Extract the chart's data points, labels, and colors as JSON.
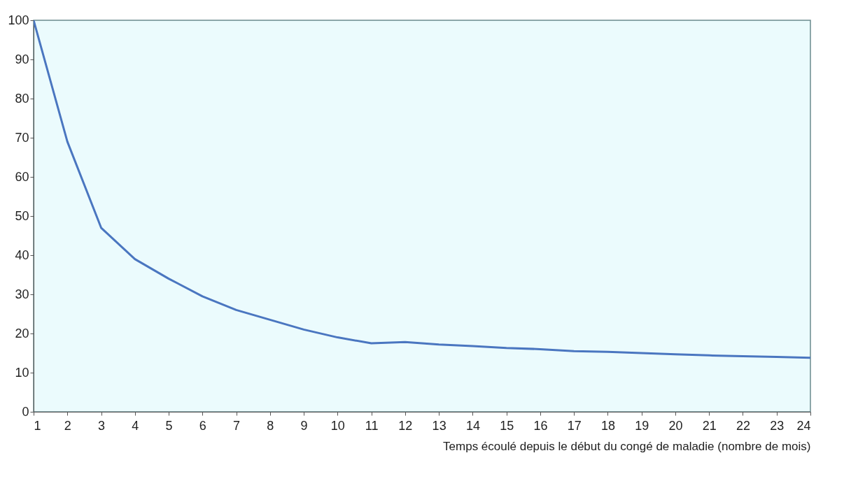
{
  "chart_data": {
    "type": "line",
    "xlabel": "Temps écoulé depuis le début du congé de maladie (nombre de mois)",
    "x": [
      1,
      2,
      3,
      4,
      5,
      6,
      7,
      8,
      9,
      10,
      11,
      12,
      13,
      14,
      15,
      16,
      17,
      18,
      19,
      20,
      21,
      22,
      23,
      24
    ],
    "series": [
      {
        "color": "#4a76c0",
        "values": [
          100,
          69,
          47,
          39,
          34,
          29.5,
          26,
          23.5,
          21,
          19,
          17.5,
          17.8,
          17.2,
          16.8,
          16.3,
          16,
          15.5,
          15.3,
          15,
          14.7,
          14.4,
          14.2,
          14,
          13.8
        ]
      }
    ],
    "xlim": [
      1,
      24
    ],
    "xticks": [
      1,
      2,
      3,
      4,
      5,
      6,
      7,
      8,
      9,
      10,
      11,
      12,
      13,
      14,
      15,
      16,
      17,
      18,
      19,
      20,
      21,
      22,
      23,
      24
    ],
    "ylim": [
      0,
      100
    ],
    "yticks": [
      0,
      10,
      20,
      30,
      40,
      50,
      60,
      70,
      80,
      90,
      100
    ],
    "marker": "none",
    "line_style": "solid"
  }
}
